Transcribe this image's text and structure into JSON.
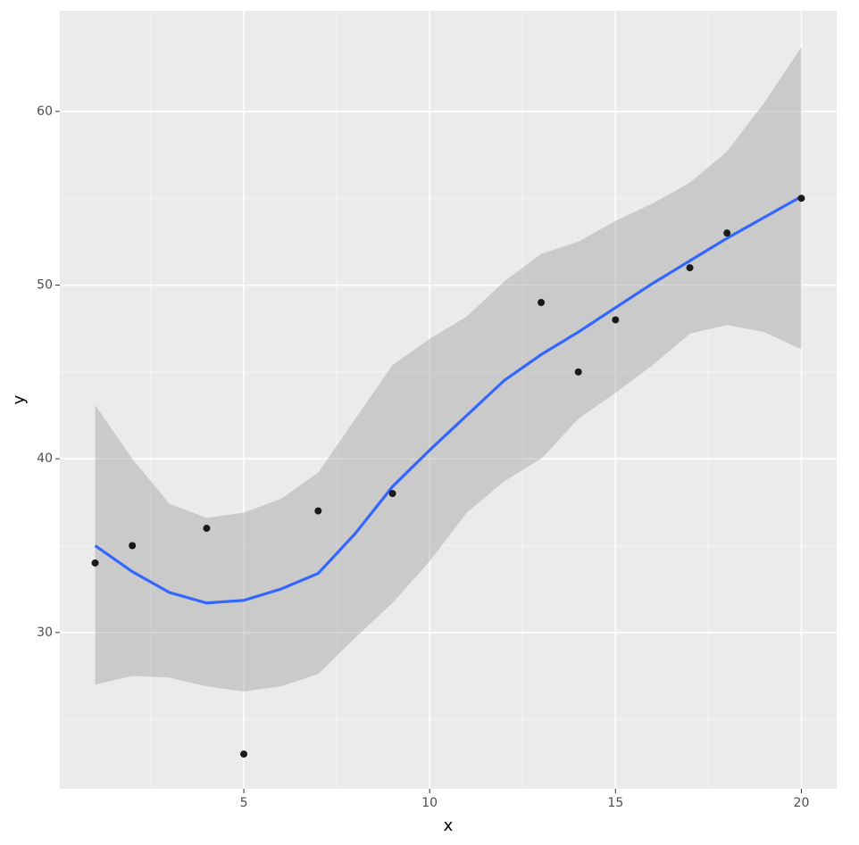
{
  "chart_data": {
    "type": "scatter",
    "xlabel": "x",
    "ylabel": "y",
    "x": [
      1,
      2,
      4,
      5,
      7,
      9,
      13,
      14,
      15,
      17,
      18,
      20
    ],
    "values": [
      34,
      35,
      36,
      23,
      37,
      38,
      49,
      45,
      48,
      51,
      53,
      55
    ],
    "color": "#1a1a1a",
    "smooth": {
      "x": [
        1,
        2,
        3,
        4,
        5,
        6,
        7,
        8,
        9,
        10,
        11,
        12,
        13,
        14,
        15,
        16,
        17,
        18,
        19,
        20
      ],
      "values": [
        35.0,
        33.5,
        32.3,
        31.7,
        31.85,
        32.5,
        33.4,
        35.7,
        38.4,
        40.5,
        42.5,
        44.5,
        46.0,
        47.3,
        48.7,
        50.1,
        51.4,
        52.7,
        53.9,
        55.1
      ],
      "upper": [
        43.1,
        40.0,
        37.4,
        36.6,
        36.9,
        37.7,
        39.2,
        42.3,
        45.4,
        46.9,
        48.2,
        50.2,
        51.8,
        52.5,
        53.7,
        54.7,
        55.9,
        57.7,
        60.5,
        63.7
      ],
      "lower": [
        27.0,
        27.5,
        27.4,
        26.9,
        26.6,
        26.9,
        27.6,
        29.7,
        31.7,
        34.1,
        36.9,
        38.7,
        40.0,
        42.3,
        43.8,
        45.4,
        47.2,
        47.7,
        47.3,
        46.3
      ],
      "color": "#3366ff",
      "band_color": "#999999"
    },
    "xlim": [
      0.05,
      20.95
    ],
    "ylim": [
      21.0,
      65.8
    ],
    "xticks": [
      5,
      10,
      15,
      20
    ],
    "yticks": [
      30,
      40,
      50,
      60
    ],
    "xminor": [
      2.5,
      7.5,
      12.5,
      17.5
    ],
    "yminor": [
      25,
      35,
      45,
      55
    ],
    "grid": true
  }
}
